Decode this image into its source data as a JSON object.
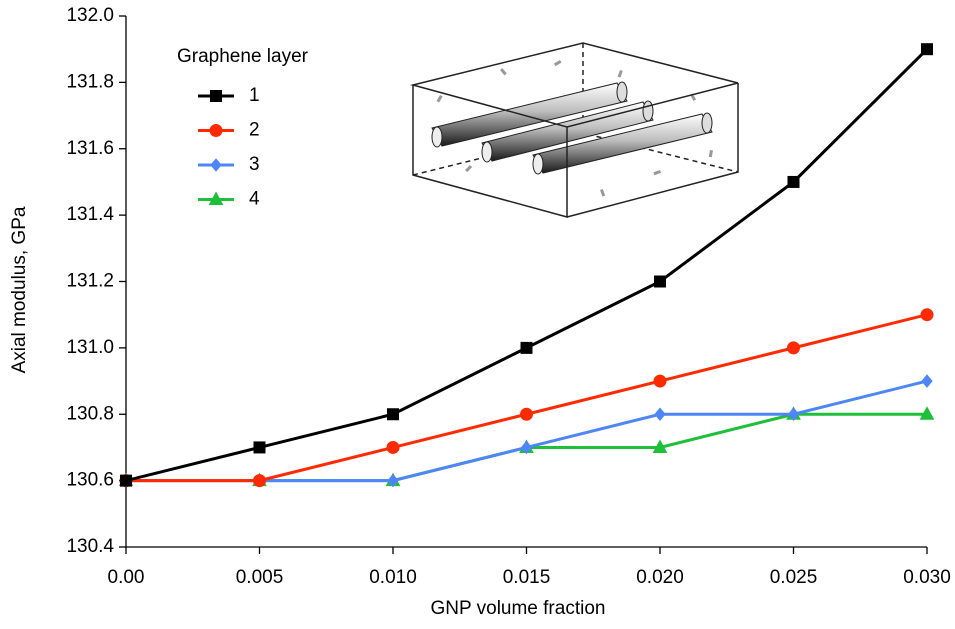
{
  "chart_data": {
    "type": "line",
    "x_label": "GNP volume fraction",
    "y_label": "Axial modulus, GPa",
    "legend_title": "Graphene layer",
    "legend_position": "upper left",
    "x": [
      0,
      0.005,
      0.01,
      0.015,
      0.02,
      0.025,
      0.03
    ],
    "series": [
      {
        "name": "1",
        "color": "#000000",
        "marker": "square",
        "values": [
          130.6,
          130.7,
          130.8,
          131.0,
          131.2,
          131.5,
          131.9
        ]
      },
      {
        "name": "2",
        "color": "#ff2a00",
        "marker": "circle",
        "values": [
          130.6,
          130.6,
          130.7,
          130.8,
          130.9,
          131.0,
          131.1
        ]
      },
      {
        "name": "3",
        "color": "#4f86f7",
        "marker": "diamond",
        "values": [
          130.6,
          130.6,
          130.6,
          130.7,
          130.8,
          130.8,
          130.9
        ]
      },
      {
        "name": "4",
        "color": "#1fbf3a",
        "marker": "triangle",
        "values": [
          130.6,
          130.6,
          130.6,
          130.7,
          130.7,
          130.8,
          130.8
        ]
      }
    ],
    "xlim": [
      0,
      0.03
    ],
    "xticks": [
      {
        "value": 0,
        "label": "0.00"
      },
      0.005,
      {
        "value": 0.01,
        "label": "0.010"
      },
      0.015,
      {
        "value": 0.02,
        "label": "0.020"
      },
      0.025,
      {
        "value": 0.03,
        "label": "0.030"
      }
    ],
    "ylim": [
      130.4,
      132.0
    ],
    "yticks": [
      130.4,
      130.6,
      130.8,
      {
        "value": 131.0,
        "label": "131.0"
      },
      131.2,
      131.4,
      131.6,
      131.8,
      {
        "value": 132.0,
        "label": "132.0"
      }
    ],
    "grid": false
  }
}
